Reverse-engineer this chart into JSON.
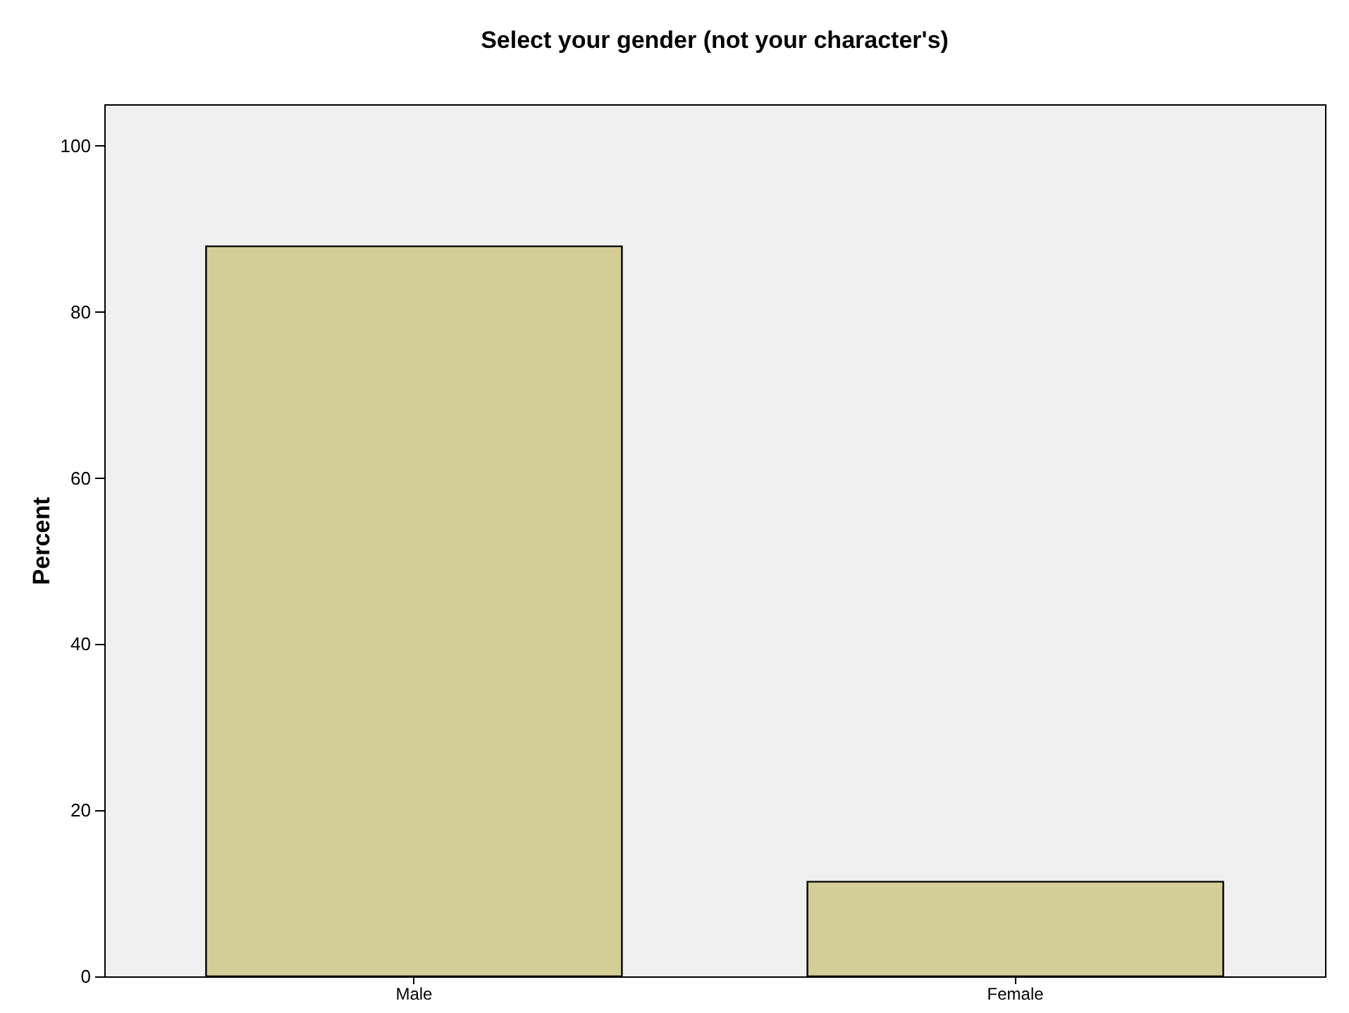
{
  "chart_data": {
    "type": "bar",
    "title": "Select your gender (not your character's)",
    "ylabel": "Percent",
    "categories": [
      "Male",
      "Female"
    ],
    "values": [
      87.9,
      11.4
    ],
    "color": "#d3cd98",
    "ylim": [
      0,
      105
    ],
    "yticks": [
      0,
      20,
      40,
      60,
      80,
      100
    ],
    "grid": false
  }
}
